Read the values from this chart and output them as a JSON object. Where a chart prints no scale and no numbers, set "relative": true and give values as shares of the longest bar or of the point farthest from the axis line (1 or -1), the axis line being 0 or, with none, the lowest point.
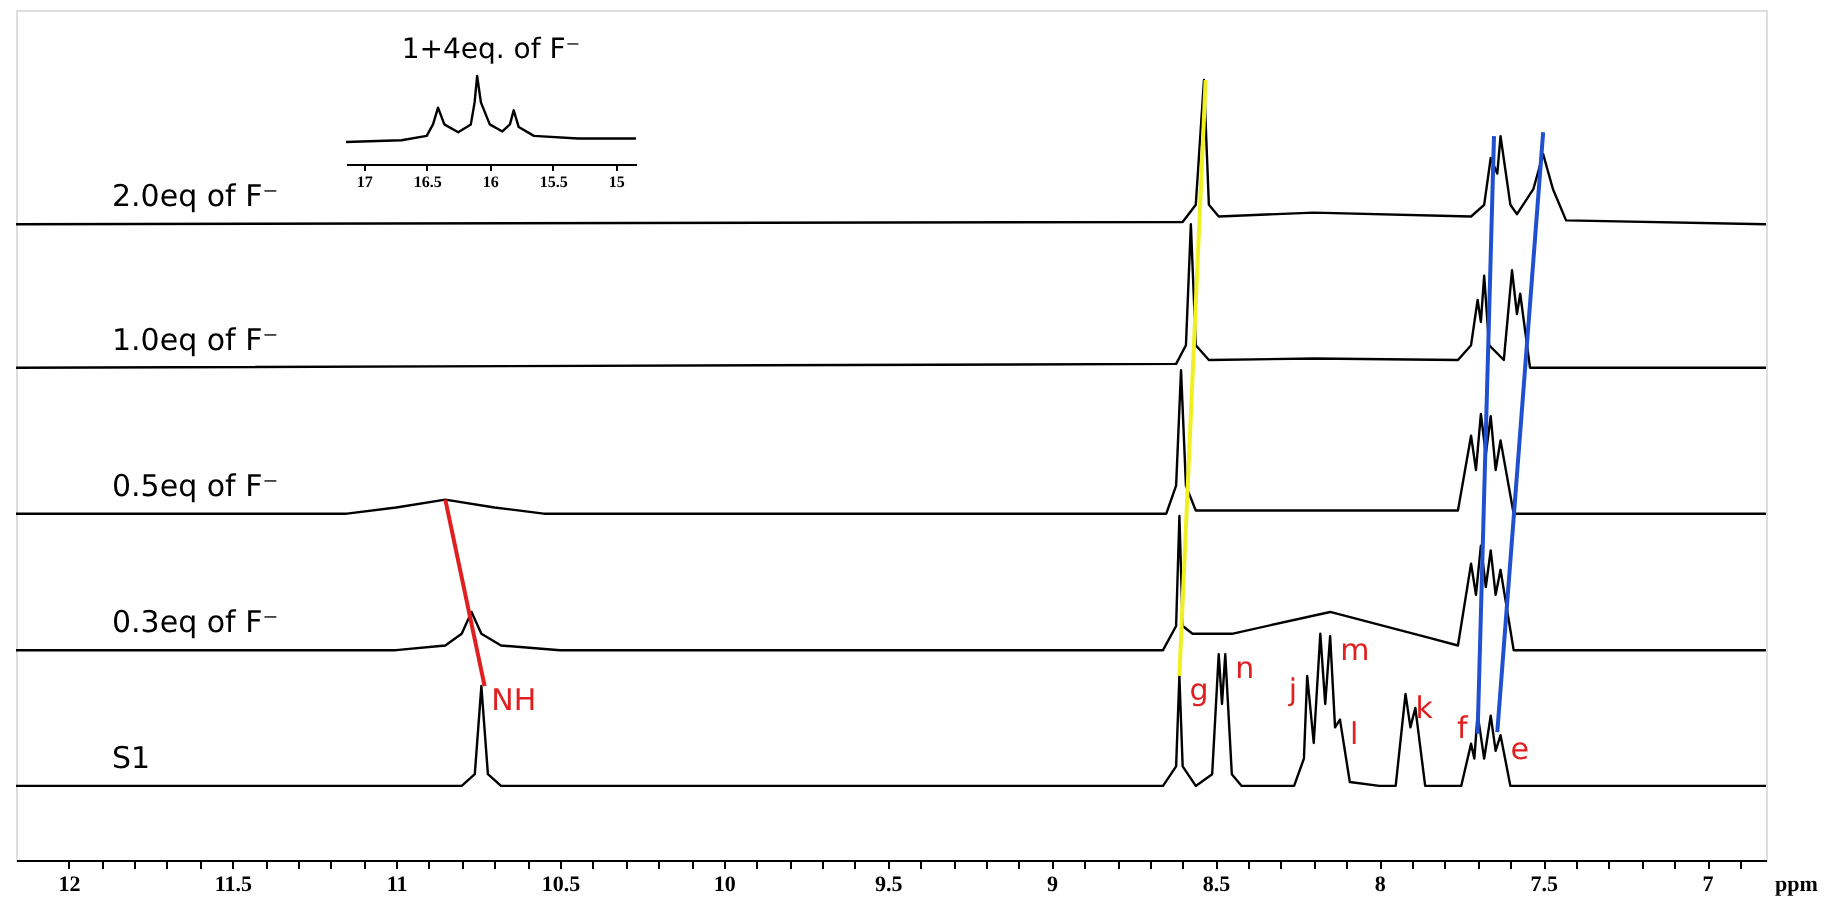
{
  "chart_data": [
    {
      "type": "line",
      "xlabel": "ppm",
      "relative": true,
      "xlim": [
        12.16,
        6.82
      ],
      "grid": false,
      "marker": "none",
      "line_style": "solid",
      "xticks": [
        12,
        {
          "value": 11.9,
          "label": null
        },
        {
          "value": 11.8,
          "label": null
        },
        {
          "value": 11.7,
          "label": null
        },
        {
          "value": 11.6,
          "label": null
        },
        11.5,
        {
          "value": 11.4,
          "label": null
        },
        {
          "value": 11.3,
          "label": null
        },
        {
          "value": 11.2,
          "label": null
        },
        {
          "value": 11.1,
          "label": null
        },
        11,
        {
          "value": 10.9,
          "label": null
        },
        {
          "value": 10.8,
          "label": null
        },
        {
          "value": 10.7,
          "label": null
        },
        {
          "value": 10.6,
          "label": null
        },
        10.5,
        {
          "value": 10.4,
          "label": null
        },
        {
          "value": 10.3,
          "label": null
        },
        {
          "value": 10.2,
          "label": null
        },
        {
          "value": 10.1,
          "label": null
        },
        10,
        {
          "value": 9.9,
          "label": null
        },
        {
          "value": 9.8,
          "label": null
        },
        {
          "value": 9.7,
          "label": null
        },
        {
          "value": 9.6,
          "label": null
        },
        9.5,
        {
          "value": 9.4,
          "label": null
        },
        {
          "value": 9.3,
          "label": null
        },
        {
          "value": 9.2,
          "label": null
        },
        {
          "value": 9.1,
          "label": null
        },
        9,
        {
          "value": 8.9,
          "label": null
        },
        {
          "value": 8.8,
          "label": null
        },
        {
          "value": 8.7,
          "label": null
        },
        {
          "value": 8.6,
          "label": null
        },
        8.5,
        {
          "value": 8.4,
          "label": null
        },
        {
          "value": 8.3,
          "label": null
        },
        {
          "value": 8.2,
          "label": null
        },
        {
          "value": 8.1,
          "label": null
        },
        8,
        {
          "value": 7.9,
          "label": null
        },
        {
          "value": 7.8,
          "label": null
        },
        {
          "value": 7.7,
          "label": null
        },
        {
          "value": 7.6,
          "label": null
        },
        7.5,
        {
          "value": 7.4,
          "label": null
        },
        {
          "value": 7.3,
          "label": null
        },
        {
          "value": 7.2,
          "label": null
        },
        {
          "value": 7.1,
          "label": null
        },
        7,
        {
          "value": 6.9,
          "label": null
        }
      ],
      "series": [
        {
          "name": "S1",
          "color": "#000000",
          "x": [
            12.16,
            10.8,
            10.76,
            10.74,
            10.72,
            10.68,
            8.66,
            8.62,
            8.61,
            8.6,
            8.56,
            8.51,
            8.49,
            8.48,
            8.47,
            8.45,
            8.42,
            8.26,
            8.23,
            8.22,
            8.2,
            8.18,
            8.165,
            8.15,
            8.135,
            8.12,
            8.09,
            8.0,
            7.95,
            7.92,
            7.905,
            7.89,
            7.86,
            7.75,
            7.72,
            7.71,
            7.7,
            7.68,
            7.66,
            7.645,
            7.63,
            7.6,
            6.82
          ],
          "values": [
            0.095,
            0.095,
            0.11,
            0.223,
            0.11,
            0.095,
            0.095,
            0.12,
            0.236,
            0.12,
            0.095,
            0.11,
            0.264,
            0.2,
            0.264,
            0.11,
            0.095,
            0.095,
            0.13,
            0.236,
            0.15,
            0.29,
            0.2,
            0.287,
            0.17,
            0.18,
            0.1,
            0.095,
            0.095,
            0.213,
            0.17,
            0.195,
            0.095,
            0.095,
            0.149,
            0.13,
            0.187,
            0.13,
            0.185,
            0.14,
            0.16,
            0.095,
            0.095
          ]
        },
        {
          "name": "0.3eq of F⁻",
          "color": "#000000",
          "x": [
            12.16,
            11.0,
            10.85,
            10.8,
            10.77,
            10.74,
            10.68,
            10.5,
            8.66,
            8.62,
            8.61,
            8.6,
            8.57,
            8.45,
            8.15,
            7.85,
            7.76,
            7.72,
            7.705,
            7.69,
            7.675,
            7.66,
            7.645,
            7.63,
            7.59,
            6.82
          ],
          "values": [
            0.269,
            0.269,
            0.275,
            0.29,
            0.318,
            0.29,
            0.275,
            0.269,
            0.269,
            0.3,
            0.441,
            0.3,
            0.29,
            0.29,
            0.318,
            0.285,
            0.275,
            0.38,
            0.34,
            0.403,
            0.35,
            0.397,
            0.34,
            0.372,
            0.269,
            0.269
          ]
        },
        {
          "name": "0.5eq of F⁻",
          "color": "#000000",
          "x": [
            12.16,
            11.15,
            11.0,
            10.85,
            10.7,
            10.55,
            8.65,
            8.62,
            8.605,
            8.59,
            8.56,
            7.76,
            7.72,
            7.705,
            7.69,
            7.675,
            7.66,
            7.645,
            7.63,
            7.59,
            6.82
          ],
          "values": [
            0.444,
            0.444,
            0.452,
            0.462,
            0.452,
            0.444,
            0.444,
            0.48,
            0.628,
            0.48,
            0.448,
            0.448,
            0.544,
            0.5,
            0.572,
            0.52,
            0.569,
            0.5,
            0.538,
            0.444,
            0.444
          ]
        },
        {
          "name": "1.0eq of F⁻",
          "color": "#000000",
          "x": [
            12.16,
            8.62,
            8.59,
            8.575,
            8.56,
            8.52,
            8.2,
            7.76,
            7.72,
            7.7,
            7.69,
            7.68,
            7.665,
            7.62,
            7.595,
            7.58,
            7.57,
            7.54,
            6.82
          ],
          "values": [
            0.631,
            0.636,
            0.66,
            0.815,
            0.66,
            0.641,
            0.643,
            0.641,
            0.66,
            0.718,
            0.69,
            0.749,
            0.66,
            0.641,
            0.756,
            0.7,
            0.726,
            0.631,
            0.631
          ]
        },
        {
          "name": "2.0eq of F⁻",
          "color": "#000000",
          "x": [
            12.16,
            8.6,
            8.56,
            8.535,
            8.52,
            8.49,
            8.2,
            7.72,
            7.68,
            7.66,
            7.64,
            7.63,
            7.6,
            7.58,
            7.53,
            7.5,
            7.47,
            7.43,
            6.82
          ],
          "values": [
            0.815,
            0.818,
            0.84,
            1.0,
            0.84,
            0.825,
            0.83,
            0.825,
            0.84,
            0.9,
            0.88,
            0.928,
            0.84,
            0.828,
            0.86,
            0.905,
            0.86,
            0.82,
            0.815
          ]
        },
        {
          "color": "#e02020",
          "x": [
            10.85,
            10.73
          ],
          "values": [
            0.462,
            0.223
          ]
        },
        {
          "color": "#f0f020",
          "x": [
            8.53,
            8.61
          ],
          "values": [
            1.0,
            0.236
          ]
        },
        {
          "color": "#2050d0",
          "x": [
            7.65,
            7.7
          ],
          "values": [
            0.928,
            0.162
          ]
        },
        {
          "color": "#2050d0",
          "x": [
            7.5,
            7.64
          ],
          "values": [
            0.933,
            0.164
          ]
        }
      ],
      "annotations": [
        {
          "text": "NH",
          "x": 10.74,
          "y": 0.223
        },
        {
          "text": "g",
          "x": 8.61,
          "y": 0.236
        },
        {
          "text": "n",
          "x": 8.47,
          "y": 0.264
        },
        {
          "text": "j",
          "x": 8.22,
          "y": 0.236
        },
        {
          "text": "m",
          "x": 8.15,
          "y": 0.287
        },
        {
          "text": "l",
          "x": 8.12,
          "y": 0.18
        },
        {
          "text": "k",
          "x": 7.92,
          "y": 0.213
        },
        {
          "text": "f",
          "x": 7.7,
          "y": 0.187
        },
        {
          "text": "e",
          "x": 7.63,
          "y": 0.16
        }
      ]
    },
    {
      "type": "line",
      "title": "1+4eq. of F⁻",
      "relative": true,
      "xlim": [
        17.14,
        14.84
      ],
      "xticks": [
        17,
        16.5,
        16,
        15.5,
        15
      ],
      "series": [
        {
          "color": "#000000",
          "x": [
            17.14,
            16.7,
            16.5,
            16.45,
            16.41,
            16.36,
            16.25,
            16.15,
            16.12,
            16.1,
            16.07,
            16.0,
            15.9,
            15.84,
            15.81,
            15.77,
            15.65,
            15.3,
            14.84
          ],
          "values": [
            0.25,
            0.27,
            0.32,
            0.45,
            0.64,
            0.45,
            0.36,
            0.45,
            0.7,
            1.0,
            0.7,
            0.45,
            0.37,
            0.45,
            0.61,
            0.42,
            0.32,
            0.29,
            0.29
          ]
        }
      ]
    }
  ]
}
